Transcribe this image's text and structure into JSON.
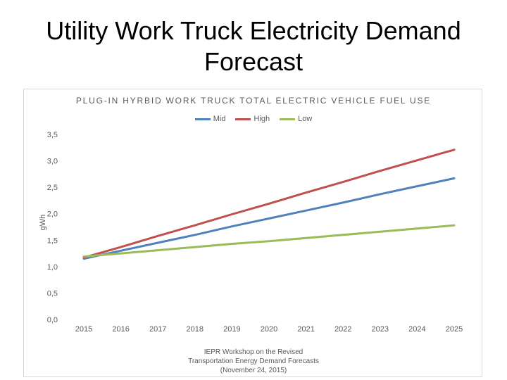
{
  "slide": {
    "title": "Utility Work Truck Electricity Demand Forecast"
  },
  "chart_data": {
    "type": "line",
    "title": "PLUG-IN HYRBID WORK TRUCK TOTAL ELECTRIC VEHICLE FUEL USE",
    "xlabel": "",
    "ylabel": "gWh",
    "categories": [
      "2015",
      "2016",
      "2017",
      "2018",
      "2019",
      "2020",
      "2021",
      "2022",
      "2023",
      "2024",
      "2025"
    ],
    "ylim": [
      0,
      3.5
    ],
    "ytick_labels": [
      "0,0",
      "0,5",
      "1,0",
      "1,5",
      "2,0",
      "2,5",
      "3,0",
      "3,5"
    ],
    "ytick_values": [
      0,
      0.5,
      1.0,
      1.5,
      2.0,
      2.5,
      3.0,
      3.5
    ],
    "grid": false,
    "legend_position": "top",
    "series": [
      {
        "name": "Mid",
        "color": "#4f81bd",
        "values": [
          1.15,
          1.3,
          1.45,
          1.6,
          1.76,
          1.91,
          2.06,
          2.21,
          2.37,
          2.52,
          2.67
        ]
      },
      {
        "name": "High",
        "color": "#c0504d",
        "values": [
          1.17,
          1.37,
          1.58,
          1.78,
          1.99,
          2.19,
          2.4,
          2.6,
          2.81,
          3.01,
          3.21
        ]
      },
      {
        "name": "Low",
        "color": "#9bbb59",
        "values": [
          1.19,
          1.25,
          1.31,
          1.37,
          1.43,
          1.48,
          1.54,
          1.6,
          1.66,
          1.72,
          1.78
        ]
      }
    ]
  },
  "footer": {
    "line1": "IEPR Workshop on the Revised",
    "line2": "Transportation Energy Demand Forecasts",
    "line3": "(November 24, 2015)"
  }
}
